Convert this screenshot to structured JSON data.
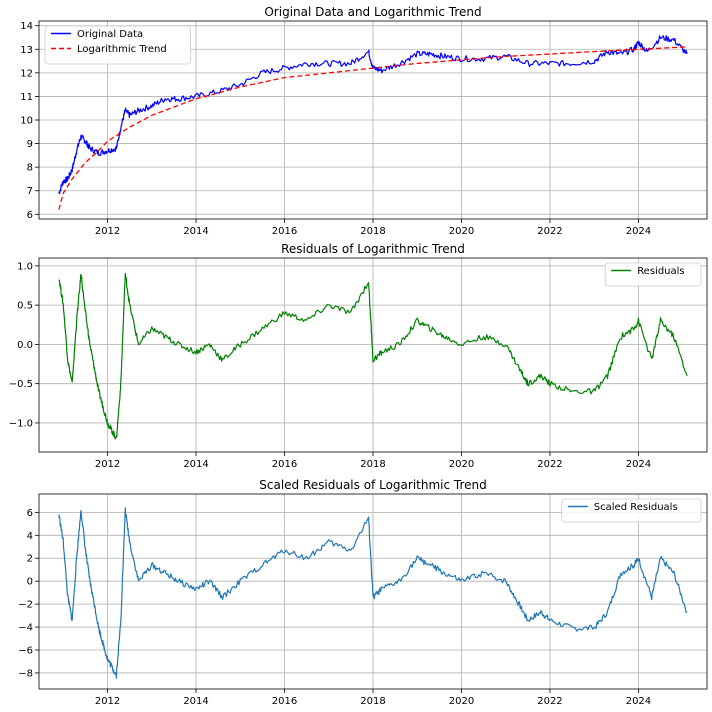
{
  "chart_data": [
    {
      "type": "line",
      "title": "Original Data and Logarithmic Trend",
      "xlim": [
        2010.45,
        2025.55
      ],
      "ylim": [
        5.8,
        14.2
      ],
      "xticks": [
        2012,
        2014,
        2016,
        2018,
        2020,
        2022,
        2024
      ],
      "yticks": [
        6,
        7,
        8,
        9,
        10,
        11,
        12,
        13,
        14
      ],
      "grid": true,
      "legend_position": "upper-left",
      "series": [
        {
          "name": "Original Data",
          "color": "#0000ff",
          "style": "solid",
          "x": [
            2010.9,
            2011.0,
            2011.1,
            2011.2,
            2011.3,
            2011.4,
            2011.5,
            2011.6,
            2011.8,
            2012.0,
            2012.2,
            2012.3,
            2012.4,
            2012.5,
            2012.7,
            2013.0,
            2013.3,
            2013.6,
            2014.0,
            2014.5,
            2015.0,
            2015.5,
            2016.0,
            2016.5,
            2017.0,
            2017.5,
            2017.9,
            2018.0,
            2018.2,
            2018.6,
            2019.0,
            2019.3,
            2019.6,
            2020.0,
            2020.5,
            2021.0,
            2021.5,
            2022.0,
            2022.5,
            2023.0,
            2023.3,
            2023.6,
            2023.9,
            2024.0,
            2024.2,
            2024.5,
            2024.8,
            2025.1
          ],
          "values": [
            6.9,
            7.4,
            7.5,
            7.9,
            8.7,
            9.3,
            9.1,
            8.8,
            8.6,
            8.7,
            8.8,
            9.7,
            10.4,
            10.2,
            10.4,
            10.6,
            10.9,
            10.9,
            11.0,
            11.2,
            11.5,
            12.0,
            12.2,
            12.4,
            12.4,
            12.4,
            12.9,
            12.2,
            12.1,
            12.4,
            12.8,
            12.8,
            12.7,
            12.6,
            12.6,
            12.7,
            12.4,
            12.4,
            12.4,
            12.5,
            12.9,
            12.8,
            13.0,
            13.3,
            12.9,
            13.5,
            13.4,
            12.8
          ]
        },
        {
          "name": "Logarithmic Trend",
          "color": "#ff0000",
          "style": "dashed",
          "x": [
            2010.9,
            2011.0,
            2011.2,
            2011.5,
            2011.8,
            2012.0,
            2012.5,
            2013.0,
            2014.0,
            2015.0,
            2016.0,
            2017.0,
            2018.0,
            2019.0,
            2020.0,
            2021.0,
            2022.0,
            2023.0,
            2024.0,
            2025.1
          ],
          "values": [
            6.2,
            6.9,
            7.5,
            8.2,
            8.7,
            9.1,
            9.7,
            10.2,
            10.9,
            11.4,
            11.8,
            12.0,
            12.2,
            12.4,
            12.55,
            12.7,
            12.8,
            12.9,
            13.0,
            13.1
          ]
        }
      ]
    },
    {
      "type": "line",
      "title": "Residuals of Logarithmic Trend",
      "xlim": [
        2010.45,
        2025.55
      ],
      "ylim": [
        -1.37,
        1.1
      ],
      "xticks": [
        2012,
        2014,
        2016,
        2018,
        2020,
        2022,
        2024
      ],
      "yticks": [
        -1.0,
        -0.5,
        0.0,
        0.5,
        1.0
      ],
      "ytick_labels": [
        "−1.0",
        "−0.5",
        "0.0",
        "0.5",
        "1.0"
      ],
      "grid": true,
      "legend_position": "upper-right",
      "series": [
        {
          "name": "Residuals",
          "color": "#008000",
          "style": "solid",
          "x": [
            2010.9,
            2011.0,
            2011.1,
            2011.2,
            2011.3,
            2011.4,
            2011.5,
            2011.6,
            2011.7,
            2011.8,
            2011.9,
            2012.0,
            2012.1,
            2012.2,
            2012.3,
            2012.4,
            2012.5,
            2012.7,
            2013.0,
            2013.3,
            2013.6,
            2014.0,
            2014.3,
            2014.6,
            2015.0,
            2015.5,
            2016.0,
            2016.5,
            2017.0,
            2017.5,
            2017.9,
            2018.0,
            2018.2,
            2018.6,
            2019.0,
            2019.3,
            2019.6,
            2020.0,
            2020.5,
            2021.0,
            2021.3,
            2021.5,
            2021.8,
            2022.0,
            2022.5,
            2023.0,
            2023.3,
            2023.6,
            2023.9,
            2024.0,
            2024.3,
            2024.5,
            2024.8,
            2025.1
          ],
          "values": [
            0.85,
            0.5,
            -0.2,
            -0.5,
            0.3,
            0.9,
            0.4,
            0.0,
            -0.3,
            -0.6,
            -0.8,
            -1.0,
            -1.1,
            -1.2,
            -0.5,
            0.9,
            0.5,
            0.0,
            0.2,
            0.1,
            0.0,
            -0.1,
            0.0,
            -0.2,
            0.0,
            0.2,
            0.4,
            0.3,
            0.5,
            0.4,
            0.8,
            -0.2,
            -0.1,
            0.0,
            0.3,
            0.2,
            0.1,
            0.0,
            0.1,
            0.0,
            -0.3,
            -0.5,
            -0.4,
            -0.5,
            -0.6,
            -0.6,
            -0.4,
            0.1,
            0.2,
            0.3,
            -0.2,
            0.3,
            0.1,
            -0.4
          ]
        }
      ]
    },
    {
      "type": "line",
      "title": "Scaled Residuals of Logarithmic Trend",
      "xlim": [
        2010.45,
        2025.55
      ],
      "ylim": [
        -9.4,
        7.6
      ],
      "xticks": [
        2012,
        2014,
        2016,
        2018,
        2020,
        2022,
        2024
      ],
      "yticks": [
        -8,
        -6,
        -4,
        -2,
        0,
        2,
        4,
        6
      ],
      "ytick_labels": [
        "−8",
        "−6",
        "−4",
        "−2",
        "0",
        "2",
        "4",
        "6"
      ],
      "grid": true,
      "legend_position": "upper-right",
      "series": [
        {
          "name": "Scaled Residuals",
          "color": "#1f77b4",
          "style": "solid",
          "x": [
            2010.9,
            2011.0,
            2011.1,
            2011.2,
            2011.3,
            2011.4,
            2011.5,
            2011.6,
            2011.7,
            2011.8,
            2011.9,
            2012.0,
            2012.1,
            2012.2,
            2012.3,
            2012.4,
            2012.5,
            2012.7,
            2013.0,
            2013.3,
            2013.6,
            2014.0,
            2014.3,
            2014.6,
            2015.0,
            2015.5,
            2016.0,
            2016.5,
            2017.0,
            2017.5,
            2017.9,
            2018.0,
            2018.2,
            2018.6,
            2019.0,
            2019.3,
            2019.6,
            2020.0,
            2020.5,
            2021.0,
            2021.3,
            2021.5,
            2021.8,
            2022.0,
            2022.5,
            2023.0,
            2023.3,
            2023.6,
            2023.9,
            2024.0,
            2024.3,
            2024.5,
            2024.8,
            2025.1
          ],
          "values": [
            5.8,
            3.4,
            -1.4,
            -3.4,
            2.0,
            6.2,
            2.7,
            0.0,
            -2.0,
            -4.1,
            -5.5,
            -6.8,
            -7.5,
            -8.2,
            -3.4,
            6.2,
            3.4,
            0.0,
            1.4,
            0.7,
            0.0,
            -0.7,
            0.0,
            -1.4,
            0.0,
            1.4,
            2.7,
            2.0,
            3.4,
            2.7,
            5.5,
            -1.4,
            -0.7,
            0.0,
            2.0,
            1.4,
            0.7,
            0.0,
            0.7,
            0.0,
            -2.0,
            -3.4,
            -2.7,
            -3.4,
            -4.1,
            -4.1,
            -2.7,
            0.7,
            1.4,
            2.0,
            -1.4,
            2.0,
            0.7,
            -2.7
          ]
        }
      ]
    }
  ]
}
